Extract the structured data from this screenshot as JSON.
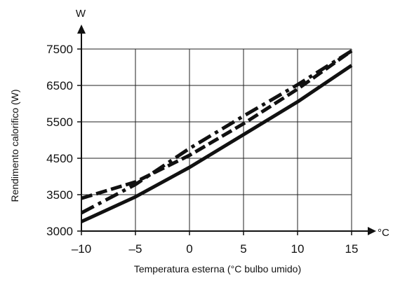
{
  "chart_data": {
    "type": "line",
    "title": "",
    "xlabel": "Temperatura esterna (°C bulbo umido)",
    "ylabel": "Rendimento calorifico (W)",
    "x_unit": "°C",
    "y_unit": "W",
    "xlim": [
      -10,
      15
    ],
    "ylim": [
      3000,
      7500
    ],
    "x_ticks": [
      -10,
      -5,
      0,
      5,
      10,
      15
    ],
    "x_tick_labels": [
      "–10",
      "–5",
      "0",
      "5",
      "10",
      "15"
    ],
    "y_ticks": [
      3000,
      3500,
      4500,
      5500,
      6500,
      7500
    ],
    "y_tick_labels": [
      "3000",
      "3500",
      "4500",
      "5500",
      "6500",
      "7500"
    ],
    "grid": true,
    "legend": "none",
    "series": [
      {
        "style": "solid",
        "color": "#111111",
        "x": [
          -10,
          -5,
          0,
          5,
          10,
          15
        ],
        "y": [
          3130,
          3470,
          4250,
          5150,
          6050,
          7050
        ]
      },
      {
        "style": "dashed",
        "color": "#111111",
        "x": [
          -10,
          -5,
          0,
          5,
          10,
          15
        ],
        "y": [
          3450,
          3850,
          4580,
          5450,
          6400,
          7450
        ]
      },
      {
        "style": "dashdot",
        "color": "#111111",
        "x": [
          -10,
          -5,
          0,
          5,
          10,
          15
        ],
        "y": [
          3250,
          3780,
          4770,
          5660,
          6520,
          7450
        ]
      }
    ]
  }
}
